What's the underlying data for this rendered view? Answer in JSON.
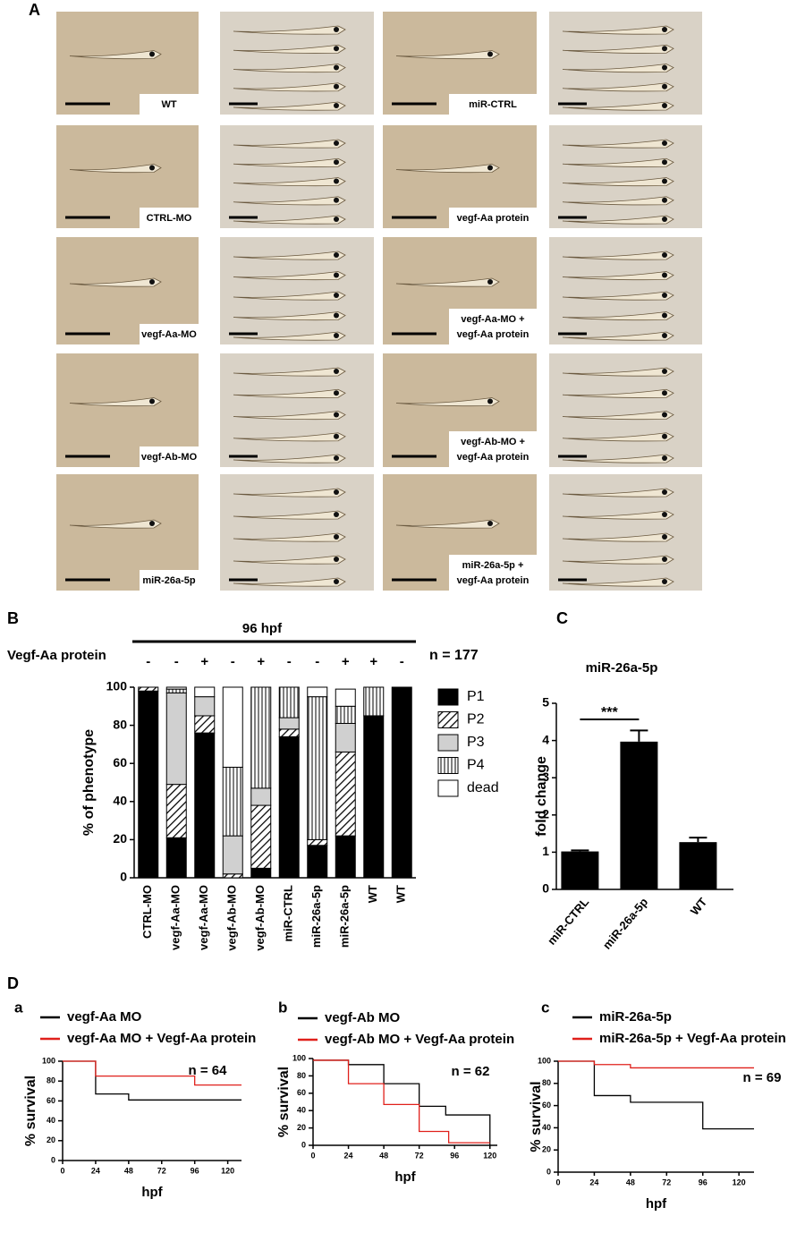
{
  "panel_labels": {
    "a": "A",
    "b": "B",
    "c": "C",
    "d": "D",
    "da": "a",
    "db": "b",
    "dc": "c"
  },
  "photo_labels": [
    [
      "WT"
    ],
    [
      "miR-CTRL"
    ],
    [
      "CTRL-MO"
    ],
    [
      "vegf-Aa protein"
    ],
    [
      "vegf-Aa-MO"
    ],
    [
      "vegf-Aa-MO +",
      "vegf-Aa protein"
    ],
    [
      "vegf-Ab-MO"
    ],
    [
      "vegf-Ab-MO +",
      "vegf-Aa protein"
    ],
    [
      "miR-26a-5p"
    ],
    [
      "miR-26a-5p +",
      "vegf-Aa protein"
    ]
  ],
  "chart_data": [
    {
      "type": "stacked-bar",
      "title": "96 hpf",
      "row_label": "Vegf-Aa protein",
      "row_values": [
        "-",
        "-",
        "+",
        "-",
        "+",
        "-",
        "-",
        "+",
        "+",
        "-"
      ],
      "annotation": "n = 177",
      "ylabel": "% of phenotype",
      "categories": [
        "CTRL-MO",
        "vegf-Aa-MO",
        "vegf-Aa-MO",
        "vegf-Ab-MO",
        "vegf-Ab-MO",
        "miR-CTRL",
        "miR-26a-5p",
        "miR-26a-5p",
        "WT",
        "WT"
      ],
      "series": [
        {
          "name": "P1",
          "color": "#000000",
          "values": [
            98,
            21,
            76,
            0,
            5,
            74,
            17,
            22,
            85,
            100
          ]
        },
        {
          "name": "P2",
          "color": "#000000",
          "pattern": "diagonal",
          "values": [
            2,
            28,
            9,
            2,
            33,
            4,
            3,
            44,
            0,
            0
          ]
        },
        {
          "name": "P3",
          "color": "#d0d0d0",
          "values": [
            0,
            48,
            10,
            20,
            9,
            6,
            0,
            15,
            0,
            0
          ]
        },
        {
          "name": "P4",
          "color": "#000000",
          "pattern": "vertical",
          "values": [
            0,
            2,
            0,
            36,
            53,
            16,
            75,
            9,
            15,
            0
          ]
        },
        {
          "name": "dead",
          "color": "#ffffff",
          "values": [
            0,
            1,
            5,
            42,
            0,
            0,
            5,
            9,
            0,
            0
          ]
        }
      ],
      "ylim": [
        0,
        100
      ],
      "yticks": [
        0,
        20,
        40,
        60,
        80,
        100
      ],
      "legend": "right"
    },
    {
      "type": "bar",
      "title": "miR-26a-5p",
      "ylabel": "fold change",
      "annotation": "***",
      "categories": [
        "miR-CTRL",
        "miR-26a-5p",
        "WT"
      ],
      "values": [
        1.02,
        3.97,
        1.27
      ],
      "errors": [
        0.03,
        0.3,
        0.12
      ],
      "color": "#000000",
      "ylim": [
        0,
        5
      ],
      "yticks": [
        0,
        1,
        2,
        3,
        4,
        5
      ]
    },
    {
      "type": "step",
      "ylabel": "% survival",
      "xlabel": "hpf",
      "annotation": "n = 64",
      "xlim": [
        0,
        130
      ],
      "xticks": [
        0,
        24,
        48,
        72,
        96,
        120
      ],
      "ylim": [
        0,
        100
      ],
      "yticks": [
        0,
        20,
        40,
        60,
        80,
        100
      ],
      "series": [
        {
          "name": "vegf-Aa MO",
          "color": "#000000",
          "x": [
            0,
            24,
            48,
            130
          ],
          "values": [
            100,
            67,
            61,
            61
          ]
        },
        {
          "name": "vegf-Aa MO + Vegf-Aa protein",
          "color": "#e0201b",
          "x": [
            0,
            24,
            96,
            130
          ],
          "values": [
            100,
            85,
            76,
            76
          ]
        }
      ]
    },
    {
      "type": "step",
      "ylabel": "% survival",
      "xlabel": "hpf",
      "annotation": "n = 62",
      "xlim": [
        0,
        125
      ],
      "xticks": [
        0,
        24,
        48,
        72,
        96,
        120
      ],
      "ylim": [
        0,
        100
      ],
      "yticks": [
        0,
        20,
        40,
        60,
        80,
        100
      ],
      "series": [
        {
          "name": "vegf-Ab MO",
          "color": "#000000",
          "x": [
            0,
            24,
            48,
            72,
            90,
            120
          ],
          "values": [
            98,
            93,
            71,
            45,
            35,
            0
          ]
        },
        {
          "name": "vegf-Ab MO + Vegf-Aa protein",
          "color": "#e0201b",
          "x": [
            0,
            24,
            48,
            72,
            92,
            120
          ],
          "values": [
            98,
            71,
            47,
            16,
            3,
            3
          ]
        }
      ]
    },
    {
      "type": "step",
      "ylabel": "% survival",
      "xlabel": "hpf",
      "annotation": "n = 69",
      "xlim": [
        0,
        130
      ],
      "xticks": [
        0,
        24,
        48,
        72,
        96,
        120
      ],
      "ylim": [
        0,
        100
      ],
      "yticks": [
        0,
        20,
        40,
        60,
        80,
        100
      ],
      "series": [
        {
          "name": "miR-26a-5p",
          "color": "#000000",
          "x": [
            0,
            24,
            48,
            96,
            130
          ],
          "values": [
            100,
            69,
            63,
            39,
            39
          ]
        },
        {
          "name": "miR-26a-5p + Vegf-Aa protein",
          "color": "#e0201b",
          "x": [
            0,
            24,
            48,
            130
          ],
          "values": [
            100,
            97,
            94,
            94
          ]
        }
      ]
    }
  ]
}
